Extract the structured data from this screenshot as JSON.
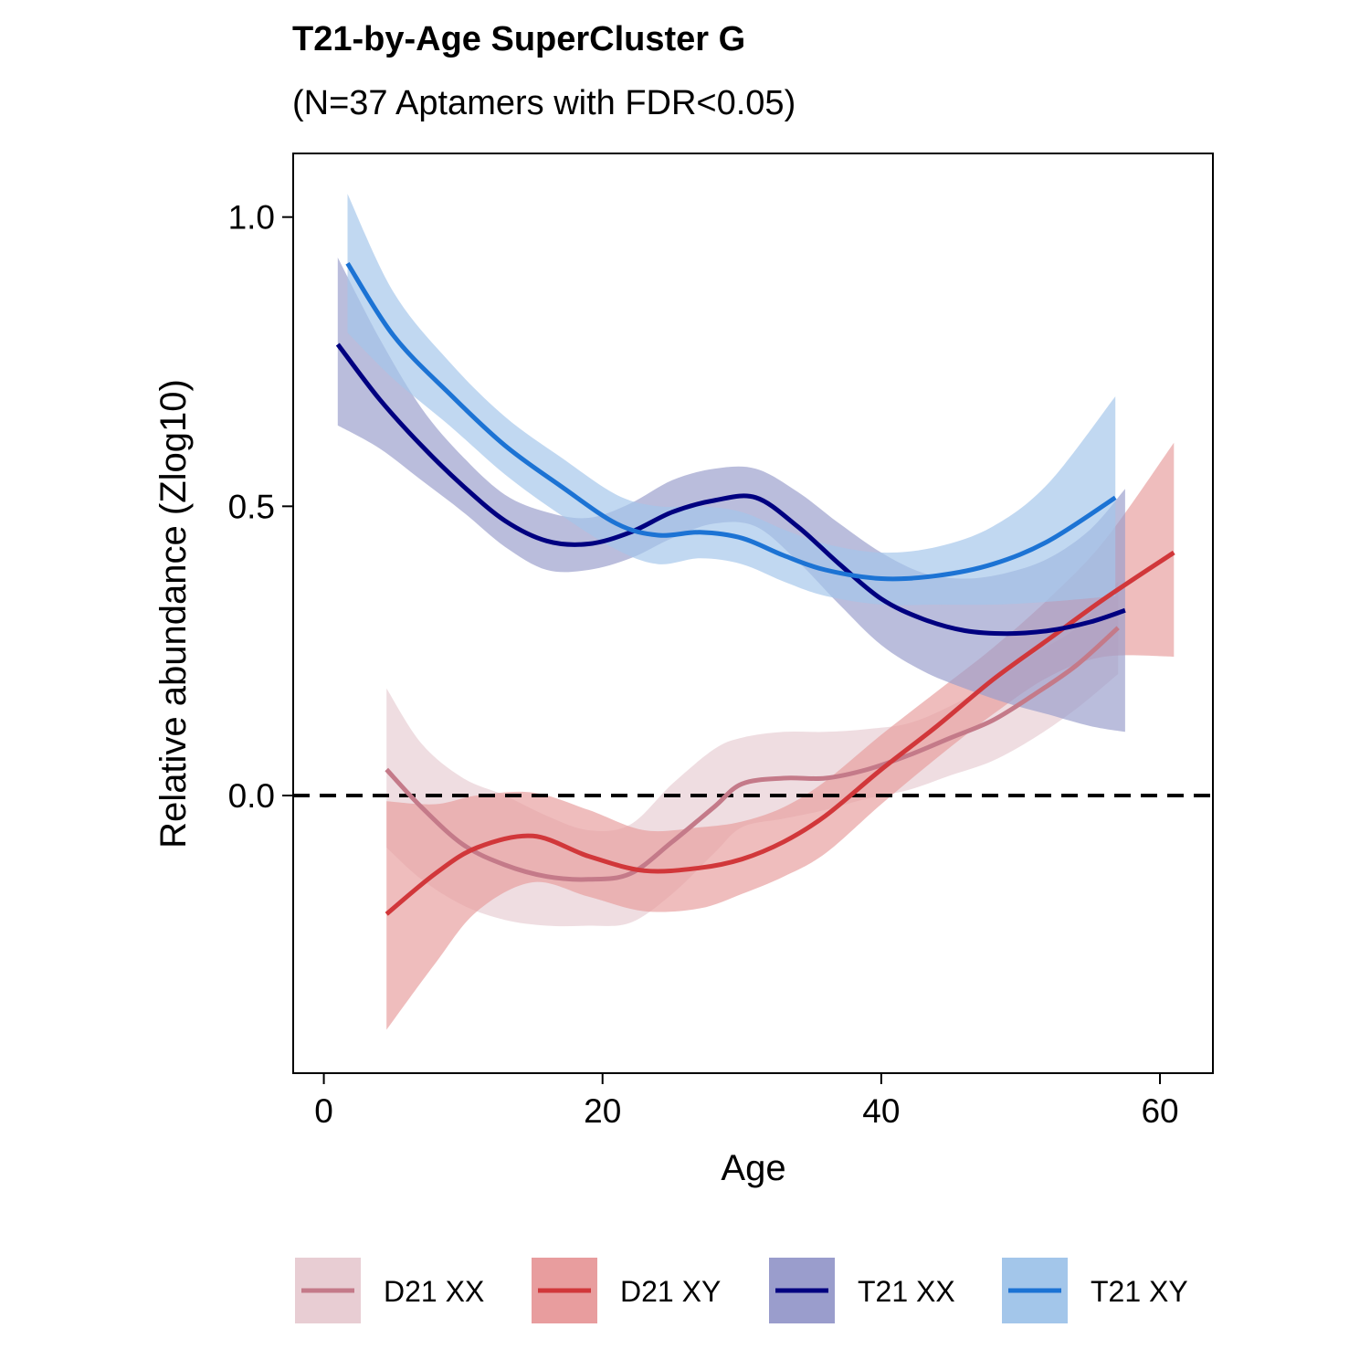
{
  "chart_data": {
    "type": "line",
    "title": "T21-by-Age SuperCluster G",
    "subtitle": "(N=37 Aptamers with FDR<0.05)",
    "xlabel": "Age",
    "ylabel": "Relative abundance (Zlog10)",
    "xlim": [
      -2.2,
      63.8
    ],
    "ylim": [
      -0.48,
      1.11
    ],
    "xticks": [
      0,
      20,
      40,
      60
    ],
    "yticks": [
      0.0,
      0.5,
      1.0
    ],
    "ytick_labels": [
      "0.0",
      "0.5",
      "1.0"
    ],
    "reference_line": {
      "y": 0,
      "style": "dashed"
    },
    "grid": false,
    "legend_position": "bottom",
    "series": [
      {
        "name": "D21 XX",
        "color": "#c47a89",
        "ribbon_color": "#e8cdd3",
        "x": [
          4.5,
          7,
          10,
          13,
          16,
          19,
          22,
          25,
          28,
          30,
          33,
          36,
          39,
          42,
          45,
          48,
          51,
          54,
          57
        ],
        "y": [
          0.045,
          -0.02,
          -0.085,
          -0.12,
          -0.14,
          -0.145,
          -0.135,
          -0.08,
          -0.02,
          0.02,
          0.03,
          0.03,
          0.045,
          0.07,
          0.1,
          0.13,
          0.175,
          0.225,
          0.29
        ],
        "lower": [
          -0.09,
          -0.145,
          -0.19,
          -0.215,
          -0.225,
          -0.225,
          -0.22,
          -0.17,
          -0.1,
          -0.055,
          -0.04,
          -0.025,
          -0.005,
          0.01,
          0.035,
          0.06,
          0.1,
          0.15,
          0.21
        ],
        "upper": [
          0.185,
          0.09,
          0.03,
          0.0,
          -0.035,
          -0.06,
          -0.05,
          0.02,
          0.08,
          0.1,
          0.11,
          0.11,
          0.115,
          0.125,
          0.155,
          0.195,
          0.245,
          0.29,
          0.37
        ]
      },
      {
        "name": "D21 XY",
        "color": "#d1373a",
        "ribbon_color": "#e89d9e",
        "x": [
          4.5,
          8,
          11,
          15,
          19,
          23,
          27,
          30,
          33,
          36,
          40,
          44,
          48,
          52,
          56,
          61
        ],
        "y": [
          -0.205,
          -0.135,
          -0.09,
          -0.07,
          -0.105,
          -0.13,
          -0.125,
          -0.11,
          -0.08,
          -0.035,
          0.045,
          0.12,
          0.2,
          0.27,
          0.34,
          0.42
        ],
        "lower": [
          -0.405,
          -0.29,
          -0.2,
          -0.15,
          -0.175,
          -0.2,
          -0.195,
          -0.17,
          -0.14,
          -0.1,
          -0.015,
          0.065,
          0.14,
          0.205,
          0.24,
          0.24
        ],
        "upper": [
          -0.01,
          -0.015,
          0.0,
          0.005,
          -0.025,
          -0.06,
          -0.055,
          -0.045,
          -0.02,
          0.025,
          0.105,
          0.18,
          0.255,
          0.34,
          0.44,
          0.61
        ]
      },
      {
        "name": "T21 XX",
        "color": "#000080",
        "ribbon_color": "#9a9dcc",
        "x": [
          1,
          4,
          7,
          10,
          13,
          16,
          19,
          22,
          25,
          28,
          31,
          34,
          37,
          40,
          43,
          46,
          49,
          52,
          55,
          57.5
        ],
        "y": [
          0.78,
          0.685,
          0.605,
          0.535,
          0.475,
          0.44,
          0.435,
          0.455,
          0.49,
          0.51,
          0.515,
          0.465,
          0.4,
          0.34,
          0.305,
          0.285,
          0.28,
          0.285,
          0.3,
          0.32
        ],
        "lower": [
          0.64,
          0.6,
          0.545,
          0.49,
          0.43,
          0.39,
          0.39,
          0.41,
          0.445,
          0.47,
          0.465,
          0.405,
          0.33,
          0.26,
          0.215,
          0.185,
          0.16,
          0.14,
          0.12,
          0.11
        ],
        "upper": [
          0.93,
          0.79,
          0.67,
          0.585,
          0.52,
          0.49,
          0.48,
          0.505,
          0.545,
          0.565,
          0.565,
          0.525,
          0.47,
          0.42,
          0.385,
          0.375,
          0.385,
          0.41,
          0.46,
          0.53
        ]
      },
      {
        "name": "T21 XY",
        "color": "#1c73d4",
        "ribbon_color": "#a3c6ea",
        "x": [
          1.7,
          5,
          9,
          13,
          17,
          21,
          24,
          27,
          30,
          33,
          36,
          40,
          44,
          48,
          52,
          56.8
        ],
        "y": [
          0.92,
          0.795,
          0.695,
          0.605,
          0.535,
          0.47,
          0.45,
          0.455,
          0.445,
          0.415,
          0.39,
          0.375,
          0.38,
          0.4,
          0.44,
          0.515
        ],
        "lower": [
          0.8,
          0.72,
          0.64,
          0.555,
          0.485,
          0.425,
          0.4,
          0.41,
          0.4,
          0.37,
          0.345,
          0.33,
          0.33,
          0.33,
          0.335,
          0.345
        ],
        "upper": [
          1.04,
          0.87,
          0.75,
          0.655,
          0.585,
          0.52,
          0.5,
          0.5,
          0.49,
          0.46,
          0.435,
          0.42,
          0.43,
          0.465,
          0.54,
          0.69
        ]
      }
    ]
  }
}
